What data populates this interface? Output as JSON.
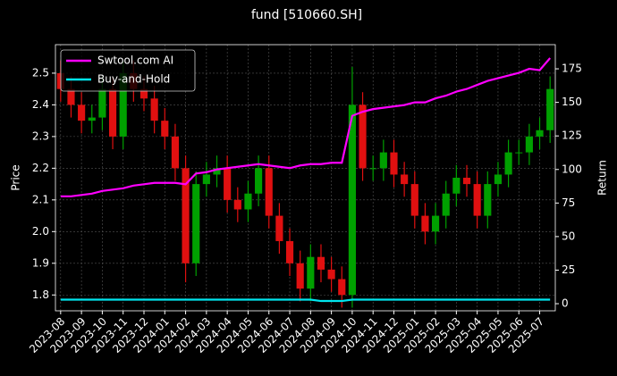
{
  "chart_data": {
    "type": "candlestick",
    "title": "fund [510660.SH]",
    "ylabel": "Price",
    "y2label": "Return",
    "categories": [
      "2023-08",
      null,
      "2023-09",
      null,
      "2023-10",
      null,
      "2023-11",
      null,
      "2023-12",
      null,
      "2024-01",
      null,
      "2024-02",
      null,
      "2024-03",
      null,
      "2024-04",
      null,
      "2024-05",
      null,
      "2024-06",
      null,
      "2024-07",
      null,
      "2024-08",
      null,
      "2024-09",
      null,
      "2024-10",
      null,
      "2024-11",
      null,
      "2024-12",
      null,
      "2025-01",
      null,
      "2025-02",
      null,
      "2025-03",
      null,
      "2025-04",
      null,
      "2025-05",
      null,
      "2025-06",
      null,
      "2025-07",
      null
    ],
    "open": [
      2.5,
      2.45,
      2.4,
      2.35,
      2.36,
      2.45,
      2.3,
      2.5,
      2.45,
      2.42,
      2.35,
      2.3,
      2.2,
      1.9,
      2.15,
      2.18,
      2.2,
      2.1,
      2.07,
      2.12,
      2.2,
      2.05,
      1.97,
      1.9,
      1.82,
      1.92,
      1.88,
      1.85,
      1.8,
      2.4,
      2.2,
      2.2,
      2.25,
      2.18,
      2.15,
      2.05,
      2.0,
      2.05,
      2.12,
      2.17,
      2.15,
      2.05,
      2.15,
      2.18,
      2.25,
      2.25,
      2.3,
      2.32
    ],
    "high": [
      2.54,
      2.49,
      2.44,
      2.4,
      2.49,
      2.49,
      2.54,
      2.54,
      2.49,
      2.46,
      2.39,
      2.34,
      2.24,
      2.19,
      2.22,
      2.24,
      2.24,
      2.14,
      2.16,
      2.24,
      2.24,
      2.09,
      2.01,
      1.94,
      1.96,
      1.96,
      1.92,
      1.89,
      2.52,
      2.44,
      2.24,
      2.29,
      2.29,
      2.22,
      2.19,
      2.09,
      2.09,
      2.16,
      2.21,
      2.21,
      2.19,
      2.19,
      2.22,
      2.29,
      2.29,
      2.34,
      2.36,
      2.49
    ],
    "low": [
      2.41,
      2.36,
      2.31,
      2.31,
      2.32,
      2.26,
      2.26,
      2.41,
      2.38,
      2.31,
      2.26,
      2.16,
      1.84,
      1.86,
      2.11,
      2.14,
      2.06,
      2.03,
      2.03,
      2.08,
      2.01,
      1.93,
      1.86,
      1.78,
      1.78,
      1.84,
      1.81,
      1.76,
      1.76,
      2.16,
      2.16,
      2.16,
      2.14,
      2.11,
      2.01,
      1.96,
      1.96,
      2.01,
      2.08,
      2.11,
      2.01,
      2.01,
      2.11,
      2.14,
      2.21,
      2.21,
      2.26,
      2.28
    ],
    "close": [
      2.45,
      2.4,
      2.35,
      2.36,
      2.45,
      2.3,
      2.5,
      2.45,
      2.42,
      2.35,
      2.3,
      2.2,
      1.9,
      2.15,
      2.18,
      2.2,
      2.1,
      2.07,
      2.12,
      2.2,
      2.05,
      1.97,
      1.9,
      1.82,
      1.92,
      1.88,
      1.85,
      1.8,
      2.4,
      2.2,
      2.2,
      2.25,
      2.18,
      2.15,
      2.05,
      2.0,
      2.05,
      2.12,
      2.17,
      2.15,
      2.05,
      2.15,
      2.18,
      2.25,
      2.25,
      2.3,
      2.32,
      2.45
    ],
    "up_color": "#00a000",
    "down_color": "#e01010",
    "series": [
      {
        "name": "Swtool.com AI",
        "color": "#ff00ff",
        "axis": "y2",
        "values": [
          80,
          80,
          81,
          82,
          84,
          85,
          86,
          88,
          89,
          90,
          90,
          90,
          89,
          97,
          98,
          100,
          101,
          102,
          103,
          104,
          103,
          102,
          101,
          103,
          104,
          104,
          105,
          105,
          140,
          143,
          145,
          146,
          147,
          148,
          150,
          150,
          153,
          155,
          158,
          160,
          163,
          166,
          168,
          170,
          172,
          175,
          174,
          183
        ]
      },
      {
        "name": "Buy-and-Hold",
        "color": "#00e5ee",
        "axis": "y2",
        "values": [
          3,
          3,
          3,
          3,
          3,
          3,
          3,
          3,
          3,
          3,
          3,
          3,
          3,
          3,
          3,
          3,
          3,
          3,
          3,
          3,
          3,
          3,
          3,
          3,
          3,
          2,
          2,
          2,
          3,
          3,
          3,
          3,
          3,
          3,
          3,
          3,
          3,
          3,
          3,
          3,
          3,
          3,
          3,
          3,
          3,
          3,
          3,
          3
        ]
      }
    ],
    "ylim": [
      1.75,
      2.59
    ],
    "yticks": [
      1.8,
      1.9,
      {
        "value": 2.0,
        "label": "2.0"
      },
      2.1,
      2.2,
      2.3,
      2.4,
      2.5
    ],
    "y2lim": [
      -5.3,
      193
    ],
    "y2ticks": [
      0,
      25,
      50,
      75,
      100,
      125,
      150,
      175
    ],
    "grid": true,
    "legend": "upper left"
  }
}
